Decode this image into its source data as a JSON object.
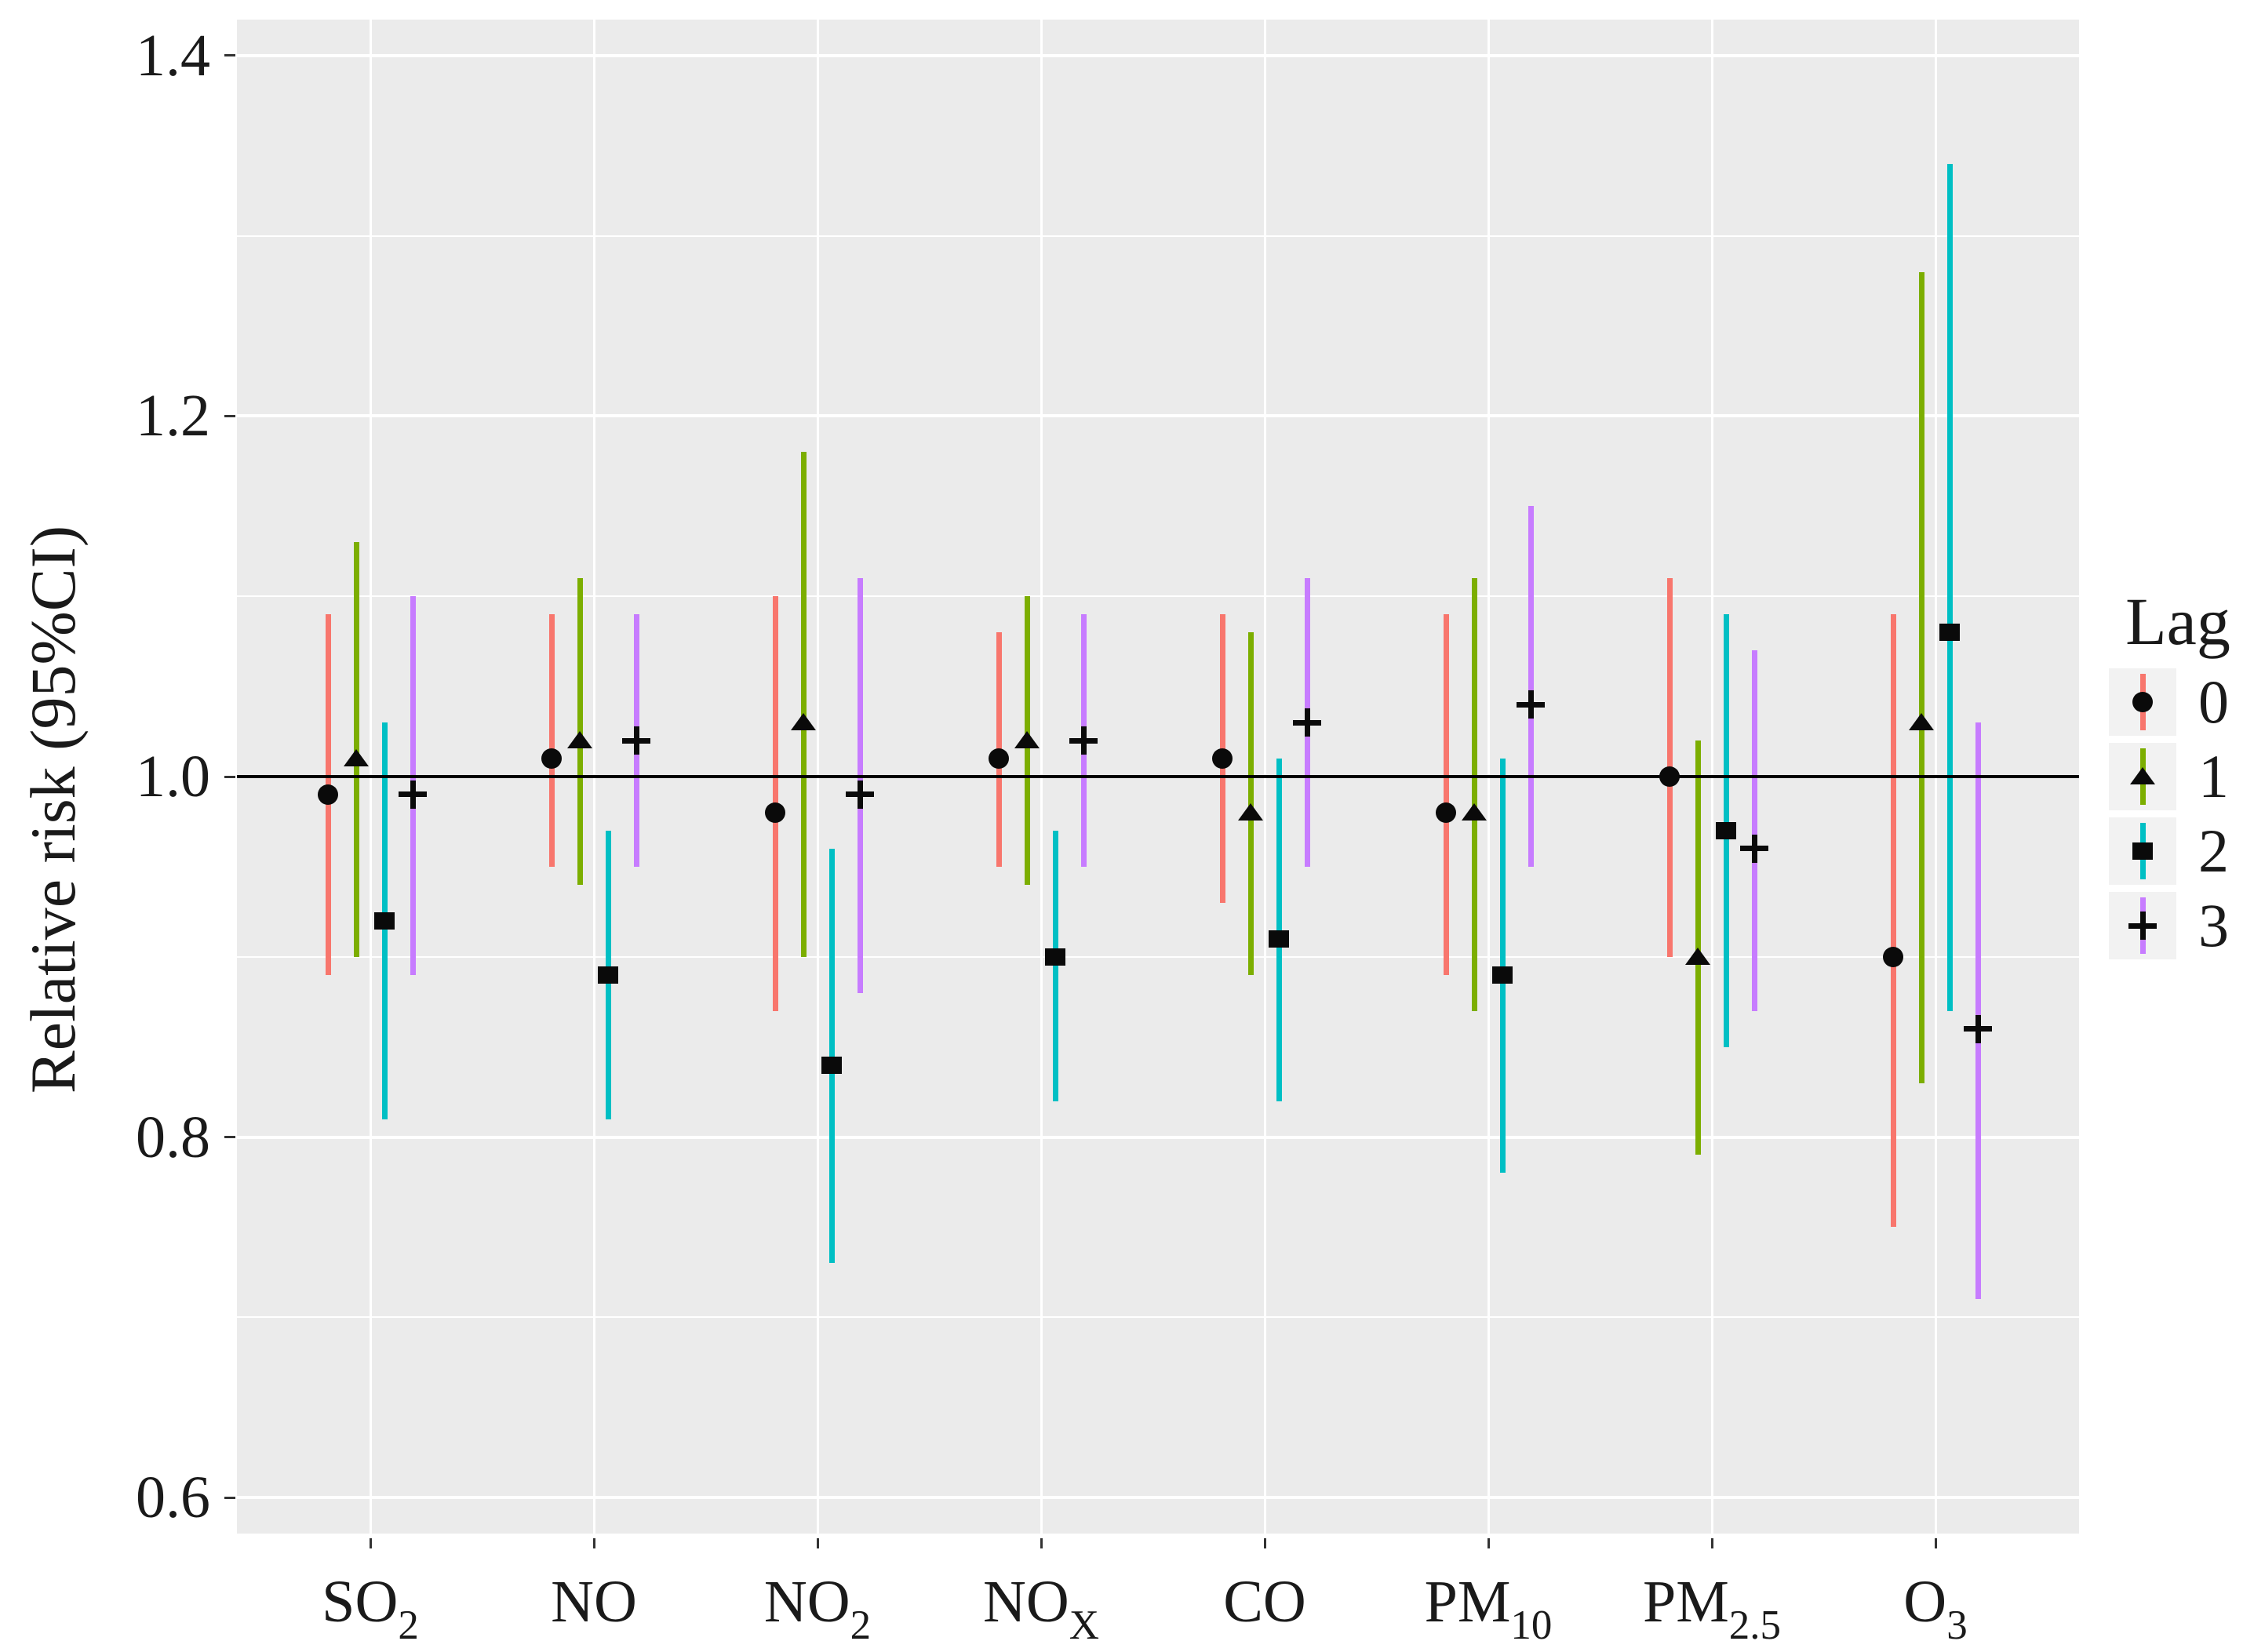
{
  "figure": {
    "background": "#ffffff",
    "panel_background": "#ebebeb",
    "grid_color": "#ffffff",
    "text_color": "#1a1a1a",
    "tick_color": "#333333",
    "marker_color": "#0a0a0a",
    "reference_line_color": "#000000"
  },
  "chart_data": {
    "type": "scatter",
    "subtype": "point-range forest plot, error bars dodged by lag",
    "title": "",
    "xlabel": "",
    "ylabel": "Relative risk (95%CI)",
    "ylim": [
      0.58,
      1.42
    ],
    "yticks": [
      {
        "value": 0.6,
        "label": "0.6"
      },
      {
        "value": 0.8,
        "label": "0.8"
      },
      {
        "value": 1.0,
        "label": "1.0"
      },
      {
        "value": 1.2,
        "label": "1.2"
      },
      {
        "value": 1.4,
        "label": "1.4"
      }
    ],
    "y_minor_ticks": [
      0.7,
      0.9,
      1.1,
      1.3
    ],
    "reference_line": 1.0,
    "grid": "white major+minor horizontal gridlines, white major vertical gridlines on gray panel",
    "legend_position": "right",
    "legend": {
      "title": "Lag",
      "labels": [
        "0",
        "1",
        "2",
        "3"
      ]
    },
    "dodge_offsets": [
      -54,
      -18,
      18,
      54
    ],
    "categories": [
      {
        "id": "SO2",
        "label": "SO",
        "subscript": "2"
      },
      {
        "id": "NO",
        "label": "NO",
        "subscript": ""
      },
      {
        "id": "NO2",
        "label": "NO",
        "subscript": "2"
      },
      {
        "id": "NOX",
        "label": "NO",
        "subscript": "X"
      },
      {
        "id": "CO",
        "label": "CO",
        "subscript": ""
      },
      {
        "id": "PM10",
        "label": "PM",
        "subscript": "10"
      },
      {
        "id": "PM2.5",
        "label": "PM",
        "subscript": "2.5"
      },
      {
        "id": "O3",
        "label": "O",
        "subscript": "3"
      }
    ],
    "series": [
      {
        "name": "0",
        "marker": "circle",
        "color": "#F8766D",
        "points": [
          {
            "est": 0.99,
            "lo": 0.89,
            "hi": 1.09
          },
          {
            "est": 1.01,
            "lo": 0.95,
            "hi": 1.09
          },
          {
            "est": 0.98,
            "lo": 0.87,
            "hi": 1.1
          },
          {
            "est": 1.01,
            "lo": 0.95,
            "hi": 1.08
          },
          {
            "est": 1.01,
            "lo": 0.93,
            "hi": 1.09
          },
          {
            "est": 0.98,
            "lo": 0.89,
            "hi": 1.09
          },
          {
            "est": 1.0,
            "lo": 0.9,
            "hi": 1.11
          },
          {
            "est": 0.9,
            "lo": 0.75,
            "hi": 1.09
          }
        ]
      },
      {
        "name": "1",
        "marker": "triangle",
        "color": "#7CAE00",
        "points": [
          {
            "est": 1.01,
            "lo": 0.9,
            "hi": 1.13
          },
          {
            "est": 1.02,
            "lo": 0.94,
            "hi": 1.11
          },
          {
            "est": 1.03,
            "lo": 0.9,
            "hi": 1.18
          },
          {
            "est": 1.02,
            "lo": 0.94,
            "hi": 1.1
          },
          {
            "est": 0.98,
            "lo": 0.89,
            "hi": 1.08
          },
          {
            "est": 0.98,
            "lo": 0.87,
            "hi": 1.11
          },
          {
            "est": 0.9,
            "lo": 0.79,
            "hi": 1.02
          },
          {
            "est": 1.03,
            "lo": 0.83,
            "hi": 1.28
          }
        ]
      },
      {
        "name": "2",
        "marker": "square",
        "color": "#00BFC4",
        "points": [
          {
            "est": 0.92,
            "lo": 0.81,
            "hi": 1.03
          },
          {
            "est": 0.89,
            "lo": 0.81,
            "hi": 0.97
          },
          {
            "est": 0.84,
            "lo": 0.73,
            "hi": 0.96
          },
          {
            "est": 0.9,
            "lo": 0.82,
            "hi": 0.97
          },
          {
            "est": 0.91,
            "lo": 0.82,
            "hi": 1.01
          },
          {
            "est": 0.89,
            "lo": 0.78,
            "hi": 1.01
          },
          {
            "est": 0.97,
            "lo": 0.85,
            "hi": 1.09
          },
          {
            "est": 1.08,
            "lo": 0.87,
            "hi": 1.34
          }
        ]
      },
      {
        "name": "3",
        "marker": "plus",
        "color": "#C77CFF",
        "points": [
          {
            "est": 0.99,
            "lo": 0.89,
            "hi": 1.1
          },
          {
            "est": 1.02,
            "lo": 0.95,
            "hi": 1.09
          },
          {
            "est": 0.99,
            "lo": 0.88,
            "hi": 1.11
          },
          {
            "est": 1.02,
            "lo": 0.95,
            "hi": 1.09
          },
          {
            "est": 1.03,
            "lo": 0.95,
            "hi": 1.11
          },
          {
            "est": 1.04,
            "lo": 0.95,
            "hi": 1.15
          },
          {
            "est": 0.96,
            "lo": 0.87,
            "hi": 1.07
          },
          {
            "est": 0.86,
            "lo": 0.71,
            "hi": 1.03
          }
        ]
      }
    ]
  }
}
